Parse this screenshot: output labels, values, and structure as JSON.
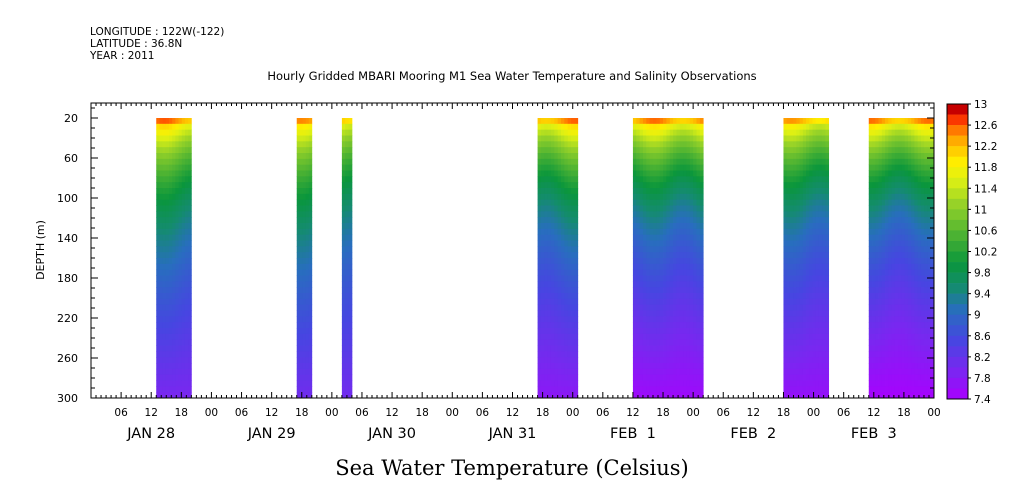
{
  "header": {
    "longitude": "LONGITUDE : 122W(-122)",
    "latitude": "LATITUDE : 36.8N",
    "year": "YEAR : 2011"
  },
  "chart_data": {
    "type": "heatmap",
    "title": "Hourly Gridded MBARI Mooring M1 Sea Water Temperature and Salinity Observations",
    "xlabel": "Sea Water Temperature (Celsius)",
    "ylabel": "DEPTH (m)",
    "x_range_hours": [
      0,
      168
    ],
    "x_start": "JAN 28 00:00 2011",
    "ylim": [
      300,
      5
    ],
    "y_ticks": [
      20,
      60,
      100,
      140,
      180,
      220,
      260,
      300
    ],
    "x_hour_ticks": [
      "06",
      "12",
      "18",
      "00",
      "06",
      "12",
      "18",
      "00",
      "06",
      "12",
      "18",
      "00",
      "06",
      "12",
      "18",
      "00",
      "06",
      "12",
      "18",
      "00",
      "06",
      "12",
      "18",
      "00",
      "06",
      "12",
      "18",
      "00"
    ],
    "day_labels": [
      "JAN 28",
      "JAN 29",
      "JAN 30",
      "JAN 31",
      "FEB  1",
      "FEB  2",
      "FEB  3"
    ],
    "colorbar": {
      "min": 7.4,
      "max": 13,
      "step": 0.2,
      "labels": [
        "13",
        "12.6",
        "12.2",
        "11.8",
        "11.4",
        "11",
        "10.6",
        "10.2",
        "9.8",
        "9.4",
        "9",
        "8.6",
        "8.2",
        "7.8",
        "7.4"
      ]
    },
    "data_segments": [
      {
        "start_hour": 13,
        "end_hour": 20,
        "surface_temp": 12.8,
        "bottom_temp": 7.9
      },
      {
        "start_hour": 41,
        "end_hour": 44,
        "surface_temp": 12.6,
        "bottom_temp": 8.0
      },
      {
        "start_hour": 50,
        "end_hour": 52,
        "surface_temp": 12.6,
        "bottom_temp": 8.0
      },
      {
        "start_hour": 89,
        "end_hour": 97,
        "surface_temp": 12.8,
        "bottom_temp": 7.7
      },
      {
        "start_hour": 108,
        "end_hour": 122,
        "surface_temp": 12.8,
        "bottom_temp": 7.5
      },
      {
        "start_hour": 138,
        "end_hour": 147,
        "surface_temp": 12.6,
        "bottom_temp": 7.6
      },
      {
        "start_hour": 155,
        "end_hour": 168,
        "surface_temp": 12.8,
        "bottom_temp": 7.4
      }
    ]
  }
}
